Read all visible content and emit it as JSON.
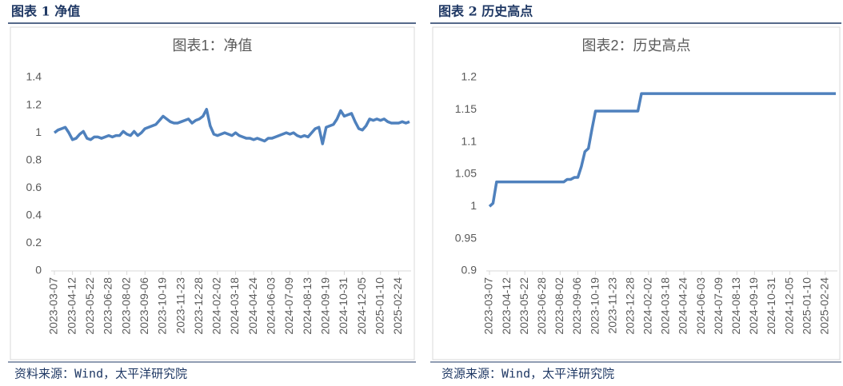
{
  "chart_data": [
    {
      "type": "line",
      "caption": "图表 1 净值",
      "title": "图表1：净值",
      "source": "资料来源：Wind，太平洋研究院",
      "categories": [
        "2023-03-07",
        null,
        null,
        null,
        null,
        "2023-04-12",
        null,
        null,
        null,
        null,
        "2023-05-22",
        null,
        null,
        null,
        null,
        "2023-06-28",
        null,
        null,
        null,
        null,
        "2023-08-02",
        null,
        null,
        null,
        null,
        "2023-09-06",
        null,
        null,
        null,
        null,
        "2023-10-19",
        null,
        null,
        null,
        null,
        "2023-11-23",
        null,
        null,
        null,
        null,
        "2023-12-28",
        null,
        null,
        null,
        null,
        "2024-02-02",
        null,
        null,
        null,
        null,
        "2024-03-18",
        null,
        null,
        null,
        null,
        "2024-04-24",
        null,
        null,
        null,
        null,
        "2024-06-03",
        null,
        null,
        null,
        null,
        "2024-07-09",
        null,
        null,
        null,
        null,
        "2024-08-13",
        null,
        null,
        null,
        null,
        "2024-09-19",
        null,
        null,
        null,
        null,
        "2024-10-31",
        null,
        null,
        null,
        null,
        "2024-12-05",
        null,
        null,
        null,
        null,
        "2025-01-10",
        null,
        null,
        null,
        null,
        "2025-02-24",
        null,
        null,
        null
      ],
      "values": [
        1.0,
        1.02,
        1.03,
        1.04,
        1.0,
        0.95,
        0.96,
        0.99,
        1.01,
        0.96,
        0.95,
        0.97,
        0.97,
        0.96,
        0.97,
        0.98,
        0.97,
        0.98,
        0.98,
        1.01,
        0.99,
        0.98,
        1.01,
        0.98,
        1.0,
        1.03,
        1.04,
        1.05,
        1.06,
        1.09,
        1.12,
        1.1,
        1.08,
        1.07,
        1.07,
        1.08,
        1.09,
        1.1,
        1.07,
        1.09,
        1.1,
        1.12,
        1.17,
        1.05,
        0.99,
        0.98,
        0.99,
        1.0,
        0.99,
        0.98,
        1.0,
        0.98,
        0.97,
        0.96,
        0.96,
        0.95,
        0.96,
        0.95,
        0.94,
        0.96,
        0.96,
        0.97,
        0.98,
        0.99,
        1.0,
        0.99,
        1.0,
        0.98,
        0.97,
        0.98,
        0.97,
        1.0,
        1.03,
        1.04,
        0.92,
        1.04,
        1.05,
        1.06,
        1.1,
        1.16,
        1.12,
        1.13,
        1.14,
        1.08,
        1.03,
        1.02,
        1.05,
        1.1,
        1.09,
        1.1,
        1.09,
        1.1,
        1.08,
        1.07,
        1.07,
        1.07,
        1.08,
        1.07,
        1.08
      ],
      "color": "#4f81bd",
      "ylim": [
        0,
        1.4
      ],
      "yticks": [
        0,
        0.2,
        0.4,
        0.6,
        0.8,
        1,
        1.2,
        1.4
      ]
    },
    {
      "type": "line",
      "caption": "图表 2 历史高点",
      "title": "图表2：历史高点",
      "source": "资源来源：Wind，太平洋研究院",
      "categories": [
        "2023-03-07",
        null,
        null,
        null,
        null,
        "2023-04-12",
        null,
        null,
        null,
        null,
        "2023-05-22",
        null,
        null,
        null,
        null,
        "2023-06-28",
        null,
        null,
        null,
        null,
        "2023-08-02",
        null,
        null,
        null,
        null,
        "2023-09-06",
        null,
        null,
        null,
        null,
        "2023-10-19",
        null,
        null,
        null,
        null,
        "2023-11-23",
        null,
        null,
        null,
        null,
        "2023-12-28",
        null,
        null,
        null,
        null,
        "2024-02-02",
        null,
        null,
        null,
        null,
        "2024-03-18",
        null,
        null,
        null,
        null,
        "2024-04-24",
        null,
        null,
        null,
        null,
        "2024-06-03",
        null,
        null,
        null,
        null,
        "2024-07-09",
        null,
        null,
        null,
        null,
        "2024-08-13",
        null,
        null,
        null,
        null,
        "2024-09-19",
        null,
        null,
        null,
        null,
        "2024-10-31",
        null,
        null,
        null,
        null,
        "2024-12-05",
        null,
        null,
        null,
        null,
        "2025-01-10",
        null,
        null,
        null,
        null,
        "2025-02-24",
        null,
        null,
        null
      ],
      "values": [
        1.0,
        1.005,
        1.038,
        1.038,
        1.038,
        1.038,
        1.038,
        1.038,
        1.038,
        1.038,
        1.038,
        1.038,
        1.038,
        1.038,
        1.038,
        1.038,
        1.038,
        1.038,
        1.038,
        1.038,
        1.038,
        1.038,
        1.042,
        1.042,
        1.045,
        1.045,
        1.062,
        1.085,
        1.09,
        1.12,
        1.148,
        1.148,
        1.148,
        1.148,
        1.148,
        1.148,
        1.148,
        1.148,
        1.148,
        1.148,
        1.148,
        1.148,
        1.148,
        1.175,
        1.175,
        1.175,
        1.175,
        1.175,
        1.175,
        1.175,
        1.175,
        1.175,
        1.175,
        1.175,
        1.175,
        1.175,
        1.175,
        1.175,
        1.175,
        1.175,
        1.175,
        1.175,
        1.175,
        1.175,
        1.175,
        1.175,
        1.175,
        1.175,
        1.175,
        1.175,
        1.175,
        1.175,
        1.175,
        1.175,
        1.175,
        1.175,
        1.175,
        1.175,
        1.175,
        1.175,
        1.175,
        1.175,
        1.175,
        1.175,
        1.175,
        1.175,
        1.175,
        1.175,
        1.175,
        1.175,
        1.175,
        1.175,
        1.175,
        1.175,
        1.175,
        1.175,
        1.175,
        1.175,
        1.175
      ],
      "color": "#4f81bd",
      "ylim": [
        0.9,
        1.2
      ],
      "yticks": [
        0.9,
        0.95,
        1,
        1.05,
        1.1,
        1.15,
        1.2
      ]
    }
  ]
}
